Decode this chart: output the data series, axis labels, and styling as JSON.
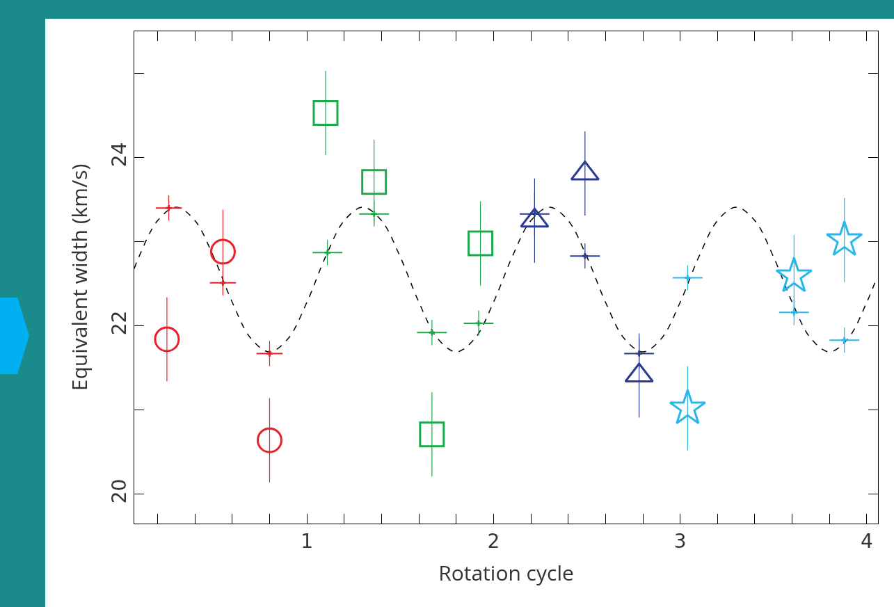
{
  "chart_data": {
    "type": "scatter",
    "xlabel": "Rotation cycle",
    "ylabel": "Equivalent width (km/s)",
    "xlim": [
      0.075,
      4.06
    ],
    "ylim": [
      19.65,
      25.5
    ],
    "xticks": [
      {
        "value": 0.2,
        "label": null
      },
      {
        "value": 0.4,
        "label": null
      },
      {
        "value": 0.6,
        "label": null
      },
      {
        "value": 0.8,
        "label": null
      },
      1,
      {
        "value": 1.2,
        "label": null
      },
      {
        "value": 1.4,
        "label": null
      },
      {
        "value": 1.6,
        "label": null
      },
      {
        "value": 1.8,
        "label": null
      },
      2,
      {
        "value": 2.2,
        "label": null
      },
      {
        "value": 2.4,
        "label": null
      },
      {
        "value": 2.6,
        "label": null
      },
      {
        "value": 2.8,
        "label": null
      },
      3,
      {
        "value": 3.2,
        "label": null
      },
      {
        "value": 3.4,
        "label": null
      },
      {
        "value": 3.6,
        "label": null
      },
      {
        "value": 3.8,
        "label": null
      },
      4
    ],
    "yticks": [
      20,
      {
        "value": 21,
        "label": null
      },
      22,
      {
        "value": 23,
        "label": null
      },
      24,
      {
        "value": 25,
        "label": null
      }
    ],
    "grid": false,
    "series": [
      {
        "type": "line",
        "line_style": "dashed",
        "color": "#000000",
        "x": [
          0.075,
          0.1,
          0.2,
          0.3,
          0.4,
          0.5,
          0.6,
          0.7,
          0.8,
          0.9,
          1.0,
          1.1,
          1.2,
          1.3,
          1.4,
          1.5,
          1.6,
          1.7,
          1.8,
          1.9,
          2.0,
          2.1,
          2.2,
          2.3,
          2.4,
          2.5,
          2.6,
          2.7,
          2.8,
          2.9,
          3.0,
          3.1,
          3.2,
          3.3,
          3.4,
          3.5,
          3.6,
          3.7,
          3.8,
          3.9,
          4.0,
          4.05
        ],
        "values": [
          22.68,
          22.82,
          23.25,
          23.41,
          23.25,
          22.82,
          22.28,
          21.85,
          21.69,
          21.85,
          22.28,
          22.82,
          23.25,
          23.41,
          23.25,
          22.82,
          22.28,
          21.85,
          21.69,
          21.85,
          22.28,
          22.82,
          23.25,
          23.41,
          23.25,
          22.82,
          22.28,
          21.85,
          21.69,
          21.85,
          22.28,
          22.82,
          23.25,
          23.41,
          23.25,
          22.82,
          22.28,
          21.85,
          21.69,
          21.85,
          22.28,
          22.55
        ]
      },
      {
        "marker": "cross",
        "color": "#e8202a",
        "x": [
          0.26,
          0.55,
          0.8
        ],
        "values": [
          23.4,
          22.51,
          21.67
        ],
        "errors": [
          0.15,
          0.15,
          0.15
        ],
        "xerrors": [
          0.07,
          0.07,
          0.07
        ]
      },
      {
        "marker": "circle",
        "color": "#e8202a",
        "x": [
          0.25,
          0.55,
          0.8
        ],
        "values": [
          21.84,
          22.88,
          20.64
        ],
        "errors": [
          0.5,
          0.5,
          0.5
        ]
      },
      {
        "marker": "cross",
        "color": "#1aaa4a",
        "x": [
          1.11,
          1.36,
          1.67,
          1.92
        ],
        "values": [
          22.87,
          23.33,
          21.92,
          22.03
        ],
        "errors": [
          0.15,
          0.15,
          0.15,
          0.15
        ],
        "xerrors": [
          0.08,
          0.08,
          0.08,
          0.08
        ]
      },
      {
        "marker": "square",
        "color": "#1aaa4a",
        "x": [
          1.1,
          1.36,
          1.67,
          1.93
        ],
        "values": [
          24.53,
          23.71,
          20.71,
          22.98
        ],
        "errors": [
          0.5,
          0.5,
          0.5,
          0.5
        ]
      },
      {
        "marker": "cross",
        "color": "#2b3990",
        "x": [
          2.22,
          2.49,
          2.78
        ],
        "values": [
          23.33,
          22.83,
          21.67
        ],
        "errors": [
          0.25,
          0.15,
          0.18
        ],
        "xerrors": [
          0.08,
          0.08,
          0.08
        ]
      },
      {
        "marker": "triangle",
        "color": "#2b3990",
        "x": [
          2.22,
          2.49,
          2.78
        ],
        "values": [
          23.25,
          23.81,
          21.41
        ],
        "errors": [
          0.5,
          0.5,
          0.5
        ]
      },
      {
        "marker": "cross",
        "color": "#29b6e8",
        "x": [
          3.04,
          3.61,
          3.88
        ],
        "values": [
          22.57,
          22.16,
          21.83
        ],
        "errors": [
          0.15,
          0.15,
          0.15
        ],
        "xerrors": [
          0.08,
          0.08,
          0.08
        ]
      },
      {
        "marker": "star",
        "color": "#29b6e8",
        "x": [
          3.04,
          3.61,
          3.88
        ],
        "values": [
          21.02,
          22.59,
          23.02
        ],
        "errors": [
          0.5,
          0.49,
          0.5
        ]
      }
    ]
  }
}
